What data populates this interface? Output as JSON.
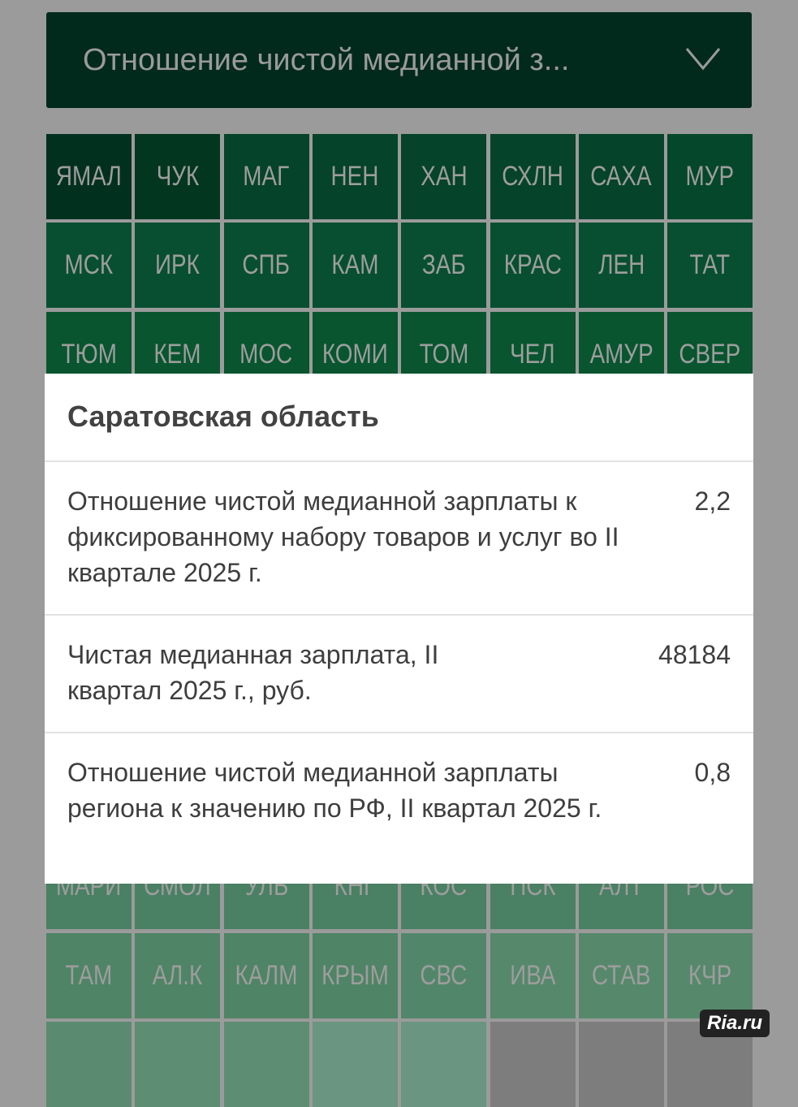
{
  "dropdown": {
    "selected": "Отношение чистой медианной з...",
    "icon": "chevron-down-icon"
  },
  "grid": {
    "rows": [
      {
        "labels": [
          "ЯМАЛ",
          "ЧУК",
          "МАГ",
          "НЕН",
          "ХАН",
          "СХЛН",
          "САХА",
          "МУР"
        ],
        "colors": [
          "#02301f",
          "#03361f",
          "#05432a",
          "#05432a",
          "#05432a",
          "#05432a",
          "#05432a",
          "#05472b"
        ]
      },
      {
        "labels": [
          "МСК",
          "ИРК",
          "СПБ",
          "КАМ",
          "ЗАБ",
          "КРАС",
          "ЛЕН",
          "ТАТ"
        ],
        "colors": [
          "#074f30",
          "#074f30",
          "#074f30",
          "#074f30",
          "#074f30",
          "#074f30",
          "#074f30",
          "#074f30"
        ]
      },
      {
        "labels": [
          "ТЮМ",
          "КЕМ",
          "МОС",
          "КОМИ",
          "ТОМ",
          "ЧЕЛ",
          "АМУР",
          "СВЕР"
        ],
        "colors": [
          "#08552f",
          "#08552f",
          "#08552f",
          "#08552f",
          "#08552f",
          "#08552f",
          "#08552f",
          "#08552f"
        ]
      },
      {
        "labels": [],
        "colors": [
          "#1a5f3c",
          "#1a5f3c",
          "#1a5f3c",
          "#1a5f3c",
          "#1a5f3c",
          "#1a5f3c",
          "#1a5f3c",
          "#1a5f3c"
        ]
      },
      {
        "labels": [],
        "colors": [
          "#256844",
          "#256844",
          "#256844",
          "#256844",
          "#256844",
          "#256844",
          "#256844",
          "#256844"
        ]
      },
      {
        "labels": [],
        "colors": [
          "#30704c",
          "#30704c",
          "#30704c",
          "#30704c",
          "#30704c",
          "#30704c",
          "#30704c",
          "#30704c"
        ]
      },
      {
        "labels": [],
        "colors": [
          "#3a7654",
          "#3a7654",
          "#3a7654",
          "#3a7654",
          "#3a7654",
          "#3a7654",
          "#3a7654",
          "#3a7654"
        ]
      },
      {
        "labels": [],
        "colors": [
          "#427b5b",
          "#427b5b",
          "#427b5b",
          "#427b5b",
          "#427b5b",
          "#427b5b",
          "#427b5b",
          "#427b5b"
        ]
      },
      {
        "labels": [
          "МАРИ",
          "СМОЛ",
          "УЛЬ",
          "КНГ",
          "КОС",
          "ПСК",
          "АЛТ",
          "РОС"
        ],
        "colors": [
          "#4a8063",
          "#4a8063",
          "#4a8063",
          "#4a8063",
          "#4a8063",
          "#4a8063",
          "#4a8063",
          "#4a8063"
        ]
      },
      {
        "labels": [
          "ТАМ",
          "АЛ.К",
          "КАЛМ",
          "КРЫМ",
          "СВС",
          "ИВА",
          "СТАВ",
          "КЧР"
        ],
        "colors": [
          "#4f8466",
          "#4f8466",
          "#4f8466",
          "#4f8466",
          "#52866a",
          "#56886c",
          "#56886c",
          "#56886c"
        ]
      },
      {
        "labels": [],
        "colors": [
          "#5a8b70",
          "#5d8d72",
          "#5d8d72",
          "#6a9580",
          "#6a9580",
          "#7d7d7d",
          "#7d7d7d",
          "#7d7d7d"
        ]
      }
    ]
  },
  "modal": {
    "title": "Саратовская область",
    "rows": [
      {
        "label": "Отношение чистой медианной зарплаты к фиксированному набору товаров и услуг во II квартале 2025 г.",
        "value": "2,2"
      },
      {
        "label": "Чистая медианная зарплата, II квартал 2025 г., руб.",
        "value": "48184"
      },
      {
        "label": "Отношение чистой медианной зарплаты региона к значению по РФ, II квартал 2025 г.",
        "value": "0,8"
      }
    ]
  },
  "watermark": "Ria.ru"
}
